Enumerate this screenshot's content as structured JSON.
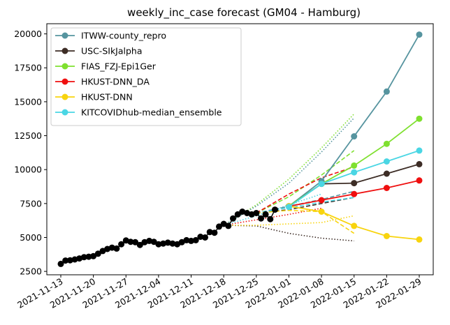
{
  "chart_data": {
    "type": "line",
    "title": "weekly_inc_case forecast (GM04 - Hamburg)",
    "xlabel": "",
    "ylabel": "",
    "xlim": [
      "2021-11-10",
      "2022-02-01"
    ],
    "ylim": [
      2250,
      20750
    ],
    "x_ticks": [
      "2021-11-13",
      "2021-11-20",
      "2021-11-27",
      "2021-12-04",
      "2021-12-11",
      "2021-12-18",
      "2021-12-25",
      "2022-01-01",
      "2022-01-08",
      "2022-01-15",
      "2022-01-22",
      "2022-01-29"
    ],
    "y_ticks": [
      2500,
      5000,
      7500,
      10000,
      12500,
      15000,
      17500,
      20000
    ],
    "grid": false,
    "legend_position": "upper-left",
    "truth": {
      "color": "#000000",
      "x": [
        "2021-11-13",
        "2021-11-14",
        "2021-11-15",
        "2021-11-16",
        "2021-11-17",
        "2021-11-18",
        "2021-11-19",
        "2021-11-20",
        "2021-11-21",
        "2021-11-22",
        "2021-11-23",
        "2021-11-24",
        "2021-11-25",
        "2021-11-26",
        "2021-11-27",
        "2021-11-28",
        "2021-11-29",
        "2021-11-30",
        "2021-12-01",
        "2021-12-02",
        "2021-12-03",
        "2021-12-04",
        "2021-12-05",
        "2021-12-06",
        "2021-12-07",
        "2021-12-08",
        "2021-12-09",
        "2021-12-10",
        "2021-12-11",
        "2021-12-12",
        "2021-12-13",
        "2021-12-14",
        "2021-12-15",
        "2021-12-16",
        "2021-12-17",
        "2021-12-18",
        "2021-12-19",
        "2021-12-20",
        "2021-12-21",
        "2021-12-22",
        "2021-12-23",
        "2021-12-24",
        "2021-12-25",
        "2021-12-26",
        "2021-12-27",
        "2021-12-28",
        "2021-12-29"
      ],
      "y": [
        3050,
        3300,
        3320,
        3380,
        3450,
        3550,
        3580,
        3620,
        3800,
        4000,
        4150,
        4250,
        4180,
        4500,
        4780,
        4680,
        4650,
        4450,
        4650,
        4750,
        4680,
        4500,
        4550,
        4620,
        4550,
        4500,
        4650,
        4800,
        4750,
        4800,
        5050,
        5000,
        5400,
        5350,
        5800,
        6000,
        5850,
        6400,
        6700,
        6900,
        6800,
        6700,
        6800,
        6400,
        6700,
        6350,
        7050
      ]
    },
    "series": [
      {
        "name": "ITWW-county_repro",
        "color": "#56949f",
        "x": [
          "2022-01-01",
          "2022-01-08",
          "2022-01-15",
          "2022-01-22",
          "2022-01-29"
        ],
        "y": [
          7300,
          9150,
          12450,
          15750,
          19950
        ]
      },
      {
        "name": "USC-SIkJalpha",
        "color": "#3d2d26",
        "x": [
          "2022-01-01",
          "2022-01-08",
          "2022-01-15",
          "2022-01-22",
          "2022-01-29"
        ],
        "y": [
          7300,
          8950,
          9000,
          9700,
          10400
        ]
      },
      {
        "name": "FIAS_FZJ-Epi1Ger",
        "color": "#7fe02f",
        "x": [
          "2022-01-01",
          "2022-01-08",
          "2022-01-15",
          "2022-01-22",
          "2022-01-29"
        ],
        "y": [
          7300,
          8950,
          10300,
          11900,
          13750
        ]
      },
      {
        "name": "HKUST-DNN_DA",
        "color": "#ef0f0f",
        "x": [
          "2022-01-01",
          "2022-01-08",
          "2022-01-15",
          "2022-01-22",
          "2022-01-29"
        ],
        "y": [
          7300,
          7750,
          8200,
          8650,
          9200
        ]
      },
      {
        "name": "HKUST-DNN",
        "color": "#f8d40e",
        "x": [
          "2022-01-01",
          "2022-01-08",
          "2022-01-15",
          "2022-01-22",
          "2022-01-29"
        ],
        "y": [
          7300,
          6900,
          5850,
          5100,
          4850
        ]
      },
      {
        "name": "KITCOVIDhub-median_ensemble",
        "color": "#4ad6e4",
        "x": [
          "2022-01-01",
          "2022-01-08",
          "2022-01-15",
          "2022-01-22",
          "2022-01-29"
        ],
        "y": [
          7250,
          8950,
          9800,
          10600,
          11400
        ]
      }
    ],
    "earlier_forecasts": [
      {
        "color": "#7fe02f",
        "style": "dotted",
        "x": [
          "2021-12-18",
          "2021-12-25",
          "2022-01-01",
          "2022-01-08",
          "2022-01-15"
        ],
        "y": [
          5900,
          7400,
          9300,
          11600,
          14100
        ]
      },
      {
        "color": "#56949f",
        "style": "dotted",
        "x": [
          "2021-12-18",
          "2021-12-25",
          "2022-01-01",
          "2022-01-08",
          "2022-01-15"
        ],
        "y": [
          5900,
          7300,
          9000,
          11300,
          13800
        ]
      },
      {
        "color": "#3d2d26",
        "style": "dotted",
        "x": [
          "2021-12-18",
          "2021-12-25",
          "2022-01-01",
          "2022-01-08",
          "2022-01-15"
        ],
        "y": [
          5900,
          5850,
          5300,
          4950,
          4750
        ]
      },
      {
        "color": "#f8d40e",
        "style": "dotted",
        "x": [
          "2021-12-18",
          "2021-12-25",
          "2022-01-01",
          "2022-01-08",
          "2022-01-15"
        ],
        "y": [
          5900,
          5900,
          6000,
          6100,
          6600
        ]
      },
      {
        "color": "#ef0f0f",
        "style": "dotted",
        "x": [
          "2021-12-18",
          "2021-12-25",
          "2022-01-01",
          "2022-01-08"
        ],
        "y": [
          5900,
          6300,
          6700,
          7150
        ]
      },
      {
        "color": "#4ad6e4",
        "style": "dotted",
        "x": [
          "2021-12-18",
          "2021-12-25",
          "2022-01-01",
          "2022-01-08"
        ],
        "y": [
          5900,
          6600,
          7400,
          8200
        ]
      },
      {
        "color": "#7fe02f",
        "style": "dashed",
        "x": [
          "2021-12-25",
          "2022-01-01",
          "2022-01-08",
          "2022-01-15"
        ],
        "y": [
          6800,
          8000,
          9600,
          11400
        ]
      },
      {
        "color": "#ef0f0f",
        "style": "dashed",
        "x": [
          "2021-12-25",
          "2022-01-01",
          "2022-01-08",
          "2022-01-15"
        ],
        "y": [
          6800,
          8200,
          9400,
          10200
        ]
      },
      {
        "color": "#56949f",
        "style": "dashed",
        "x": [
          "2021-12-25",
          "2022-01-01",
          "2022-01-08",
          "2022-01-15"
        ],
        "y": [
          6800,
          7300,
          7800,
          8400
        ]
      },
      {
        "color": "#3d2d26",
        "style": "dashed",
        "x": [
          "2021-12-25",
          "2022-01-01",
          "2022-01-08",
          "2022-01-15"
        ],
        "y": [
          6800,
          7050,
          7500,
          7950
        ]
      },
      {
        "color": "#4ad6e4",
        "style": "dashed",
        "x": [
          "2021-12-25",
          "2022-01-01",
          "2022-01-08",
          "2022-01-15"
        ],
        "y": [
          6800,
          7200,
          7600,
          7950
        ]
      },
      {
        "color": "#f8d40e",
        "style": "dashed",
        "x": [
          "2021-12-25",
          "2022-01-01",
          "2022-01-08",
          "2022-01-15"
        ],
        "y": [
          6800,
          7000,
          6900,
          5300
        ]
      }
    ]
  }
}
